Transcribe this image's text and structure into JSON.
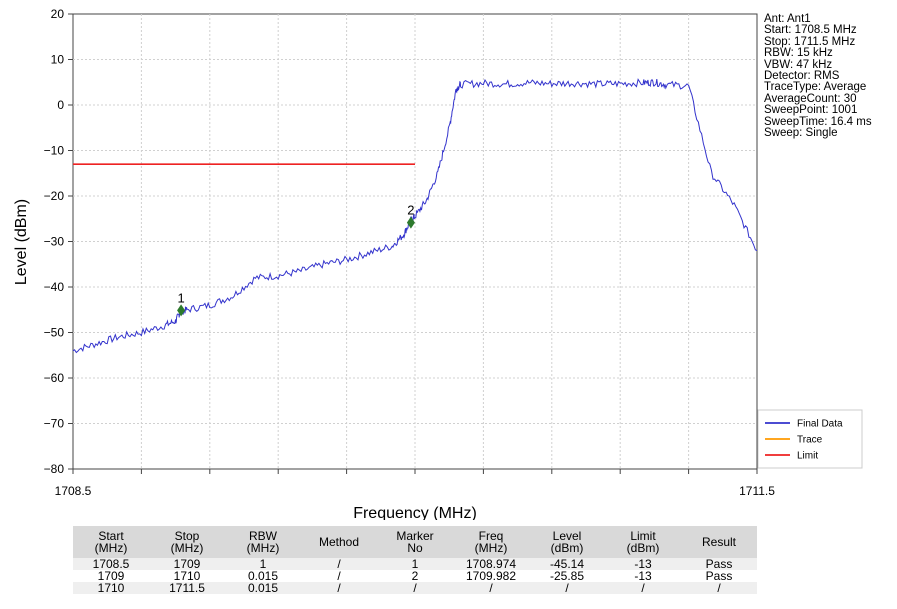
{
  "chart_data": {
    "type": "line",
    "xlabel": "Frequency (MHz)",
    "ylabel": "Level (dBm)",
    "xlim": [
      1708.5,
      1711.5
    ],
    "ylim": [
      -80,
      20
    ],
    "x_tick_labels": [
      "1708.5",
      "1711.5"
    ],
    "y_ticks": [
      20,
      10,
      0,
      -10,
      -20,
      -30,
      -40,
      -50,
      -60,
      -70,
      -80
    ],
    "y_tick_labels": [
      "20",
      "10",
      "0",
      "−10",
      "−20",
      "−30",
      "−40",
      "−50",
      "−60",
      "−70",
      "−80"
    ],
    "grid": true,
    "legend": {
      "placement": "bottom-right",
      "entries": [
        {
          "label": "Final Data",
          "color": "#3333cc"
        },
        {
          "label": "Trace",
          "color": "#ff9900"
        },
        {
          "label": "Limit",
          "color": "#ee2222"
        }
      ]
    },
    "series": [
      {
        "name": "Final Data",
        "color": "#3333cc",
        "x": [
          1708.5,
          1708.6,
          1708.7,
          1708.8,
          1708.9,
          1708.95,
          1708.97,
          1709.0,
          1709.1,
          1709.2,
          1709.3,
          1709.4,
          1709.5,
          1709.6,
          1709.7,
          1709.8,
          1709.9,
          1709.95,
          1709.98,
          1710.0,
          1710.05,
          1710.1,
          1710.15,
          1710.18,
          1710.2,
          1710.3,
          1710.4,
          1710.5,
          1710.6,
          1710.7,
          1710.8,
          1710.9,
          1711.0,
          1711.05,
          1711.1,
          1711.2,
          1711.3,
          1711.4,
          1711.5
        ],
        "y": [
          -54,
          -52.5,
          -51,
          -50,
          -48.5,
          -47.5,
          -45.5,
          -45,
          -44,
          -42,
          -38,
          -37.5,
          -36.5,
          -35,
          -34,
          -32.5,
          -31,
          -28.5,
          -25.5,
          -24.5,
          -21,
          -15,
          -5,
          3.5,
          4.5,
          4.8,
          4.6,
          4.9,
          4.7,
          4.8,
          4.6,
          4.7,
          4.9,
          5,
          4.5,
          4.2,
          -15,
          -22,
          -32
        ]
      },
      {
        "name": "Limit",
        "color": "#ee2222",
        "x": [
          1708.5,
          1710.0
        ],
        "y": [
          -13,
          -13
        ]
      }
    ],
    "markers": [
      {
        "label": "1",
        "x": 1708.974,
        "y": -45.14,
        "color": "#2d7a2d"
      },
      {
        "label": "2",
        "x": 1709.982,
        "y": -25.85,
        "color": "#2d7a2d"
      }
    ]
  },
  "info_lines": [
    "Ant: Ant1",
    "Start: 1708.5 MHz",
    "Stop: 1711.5 MHz",
    "RBW: 15 kHz",
    "VBW: 47 kHz",
    "Detector: RMS",
    "TraceType: Average",
    "AverageCount: 30",
    "SweepPoint: 1001",
    "SweepTime: 16.4 ms",
    "Sweep: Single"
  ],
  "table": {
    "headers": [
      [
        "Start",
        "(MHz)"
      ],
      [
        "Stop",
        "(MHz)"
      ],
      [
        "RBW",
        "(MHz)"
      ],
      [
        "Method"
      ],
      [
        "Marker",
        "No"
      ],
      [
        "Freq",
        "(MHz)"
      ],
      [
        "Level",
        "(dBm)"
      ],
      [
        "Limit",
        "(dBm)"
      ],
      [
        "Result"
      ]
    ],
    "rows": [
      [
        "1708.5",
        "1709",
        "1",
        "/",
        "1",
        "1708.974",
        "-45.14",
        "-13",
        "Pass"
      ],
      [
        "1709",
        "1710",
        "0.015",
        "/",
        "2",
        "1709.982",
        "-25.85",
        "-13",
        "Pass"
      ],
      [
        "1710",
        "1711.5",
        "0.015",
        "/",
        "/",
        "/",
        "/",
        "/",
        "/"
      ]
    ]
  }
}
